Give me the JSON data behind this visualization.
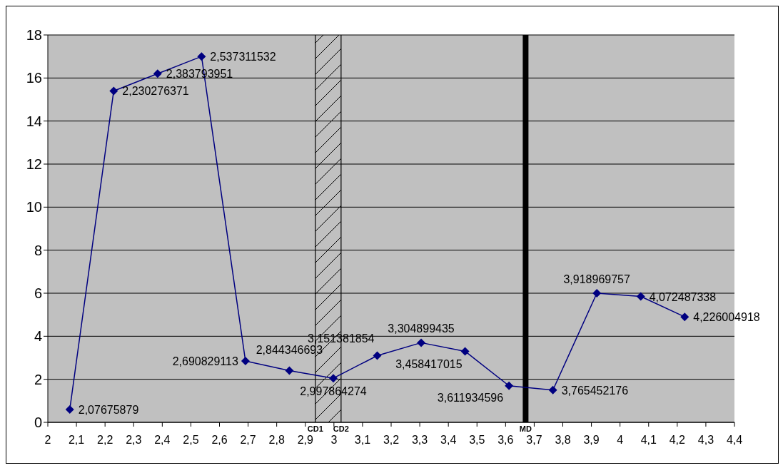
{
  "chart_data": {
    "type": "line",
    "x": [
      2.07675879,
      2.230276371,
      2.383793951,
      2.537311532,
      2.690829113,
      2.844346693,
      2.997864274,
      3.151381854,
      3.304899435,
      3.458417015,
      3.611934596,
      3.765452176,
      3.918969757,
      4.072487338,
      4.226004918
    ],
    "series": [
      {
        "color": "#000080",
        "values": [
          0.6,
          15.4,
          16.2,
          17.0,
          2.85,
          2.4,
          2.05,
          3.1,
          3.7,
          3.3,
          1.7,
          1.5,
          6.0,
          5.85,
          4.9
        ],
        "value_labels": [
          "2,07675879",
          "2,230276371",
          "2,383793951",
          "2,537311532",
          "2,690829113",
          "2,844346693",
          "2,997864274",
          "3,151381854",
          "3,304899435",
          "3,458417015",
          "3,611934596",
          "3,765452176",
          "3,918969757",
          "4,072487338",
          "4,226004918"
        ]
      }
    ],
    "xlim": [
      2,
      4.4
    ],
    "xticks": [
      2,
      {
        "value": 2.1,
        "label": "2,1"
      },
      {
        "value": 2.2,
        "label": "2,2"
      },
      {
        "value": 2.3,
        "label": "2,3"
      },
      {
        "value": 2.4,
        "label": "2,4"
      },
      {
        "value": 2.5,
        "label": "2,5"
      },
      {
        "value": 2.6,
        "label": "2,6"
      },
      {
        "value": 2.7,
        "label": "2,7"
      },
      {
        "value": 2.8,
        "label": "2,8"
      },
      {
        "value": 2.9,
        "label": "2,9"
      },
      3,
      {
        "value": 3.1,
        "label": "3,1"
      },
      {
        "value": 3.2,
        "label": "3,2"
      },
      {
        "value": 3.3,
        "label": "3,3"
      },
      {
        "value": 3.4,
        "label": "3,4"
      },
      {
        "value": 3.5,
        "label": "3,5"
      },
      {
        "value": 3.6,
        "label": "3,6"
      },
      {
        "value": 3.7,
        "label": "3,7"
      },
      {
        "value": 3.8,
        "label": "3,8"
      },
      {
        "value": 3.9,
        "label": "3,9"
      },
      4,
      {
        "value": 4.1,
        "label": "4,1"
      },
      {
        "value": 4.2,
        "label": "4,2"
      },
      {
        "value": 4.3,
        "label": "4,3"
      },
      {
        "value": 4.4,
        "label": "4,4"
      }
    ],
    "ylim": [
      0,
      18
    ],
    "yticks": [
      0,
      2,
      4,
      6,
      8,
      10,
      12,
      14,
      16,
      18
    ],
    "grid": "y",
    "marker": "diamond",
    "line_style": "solid",
    "legend": false,
    "bands": [
      {
        "axis": "x",
        "from": 2.935,
        "to": 3.025
      }
    ],
    "ref_lines": [
      {
        "axis": "x",
        "value": 2.935,
        "label": "CD1",
        "color": "#000000"
      },
      {
        "axis": "x",
        "value": 3.025,
        "label": "CD2",
        "color": "#000000"
      },
      {
        "axis": "x",
        "value": 3.67,
        "label": "MD",
        "color": "#000000",
        "line_style": "solid"
      }
    ]
  }
}
